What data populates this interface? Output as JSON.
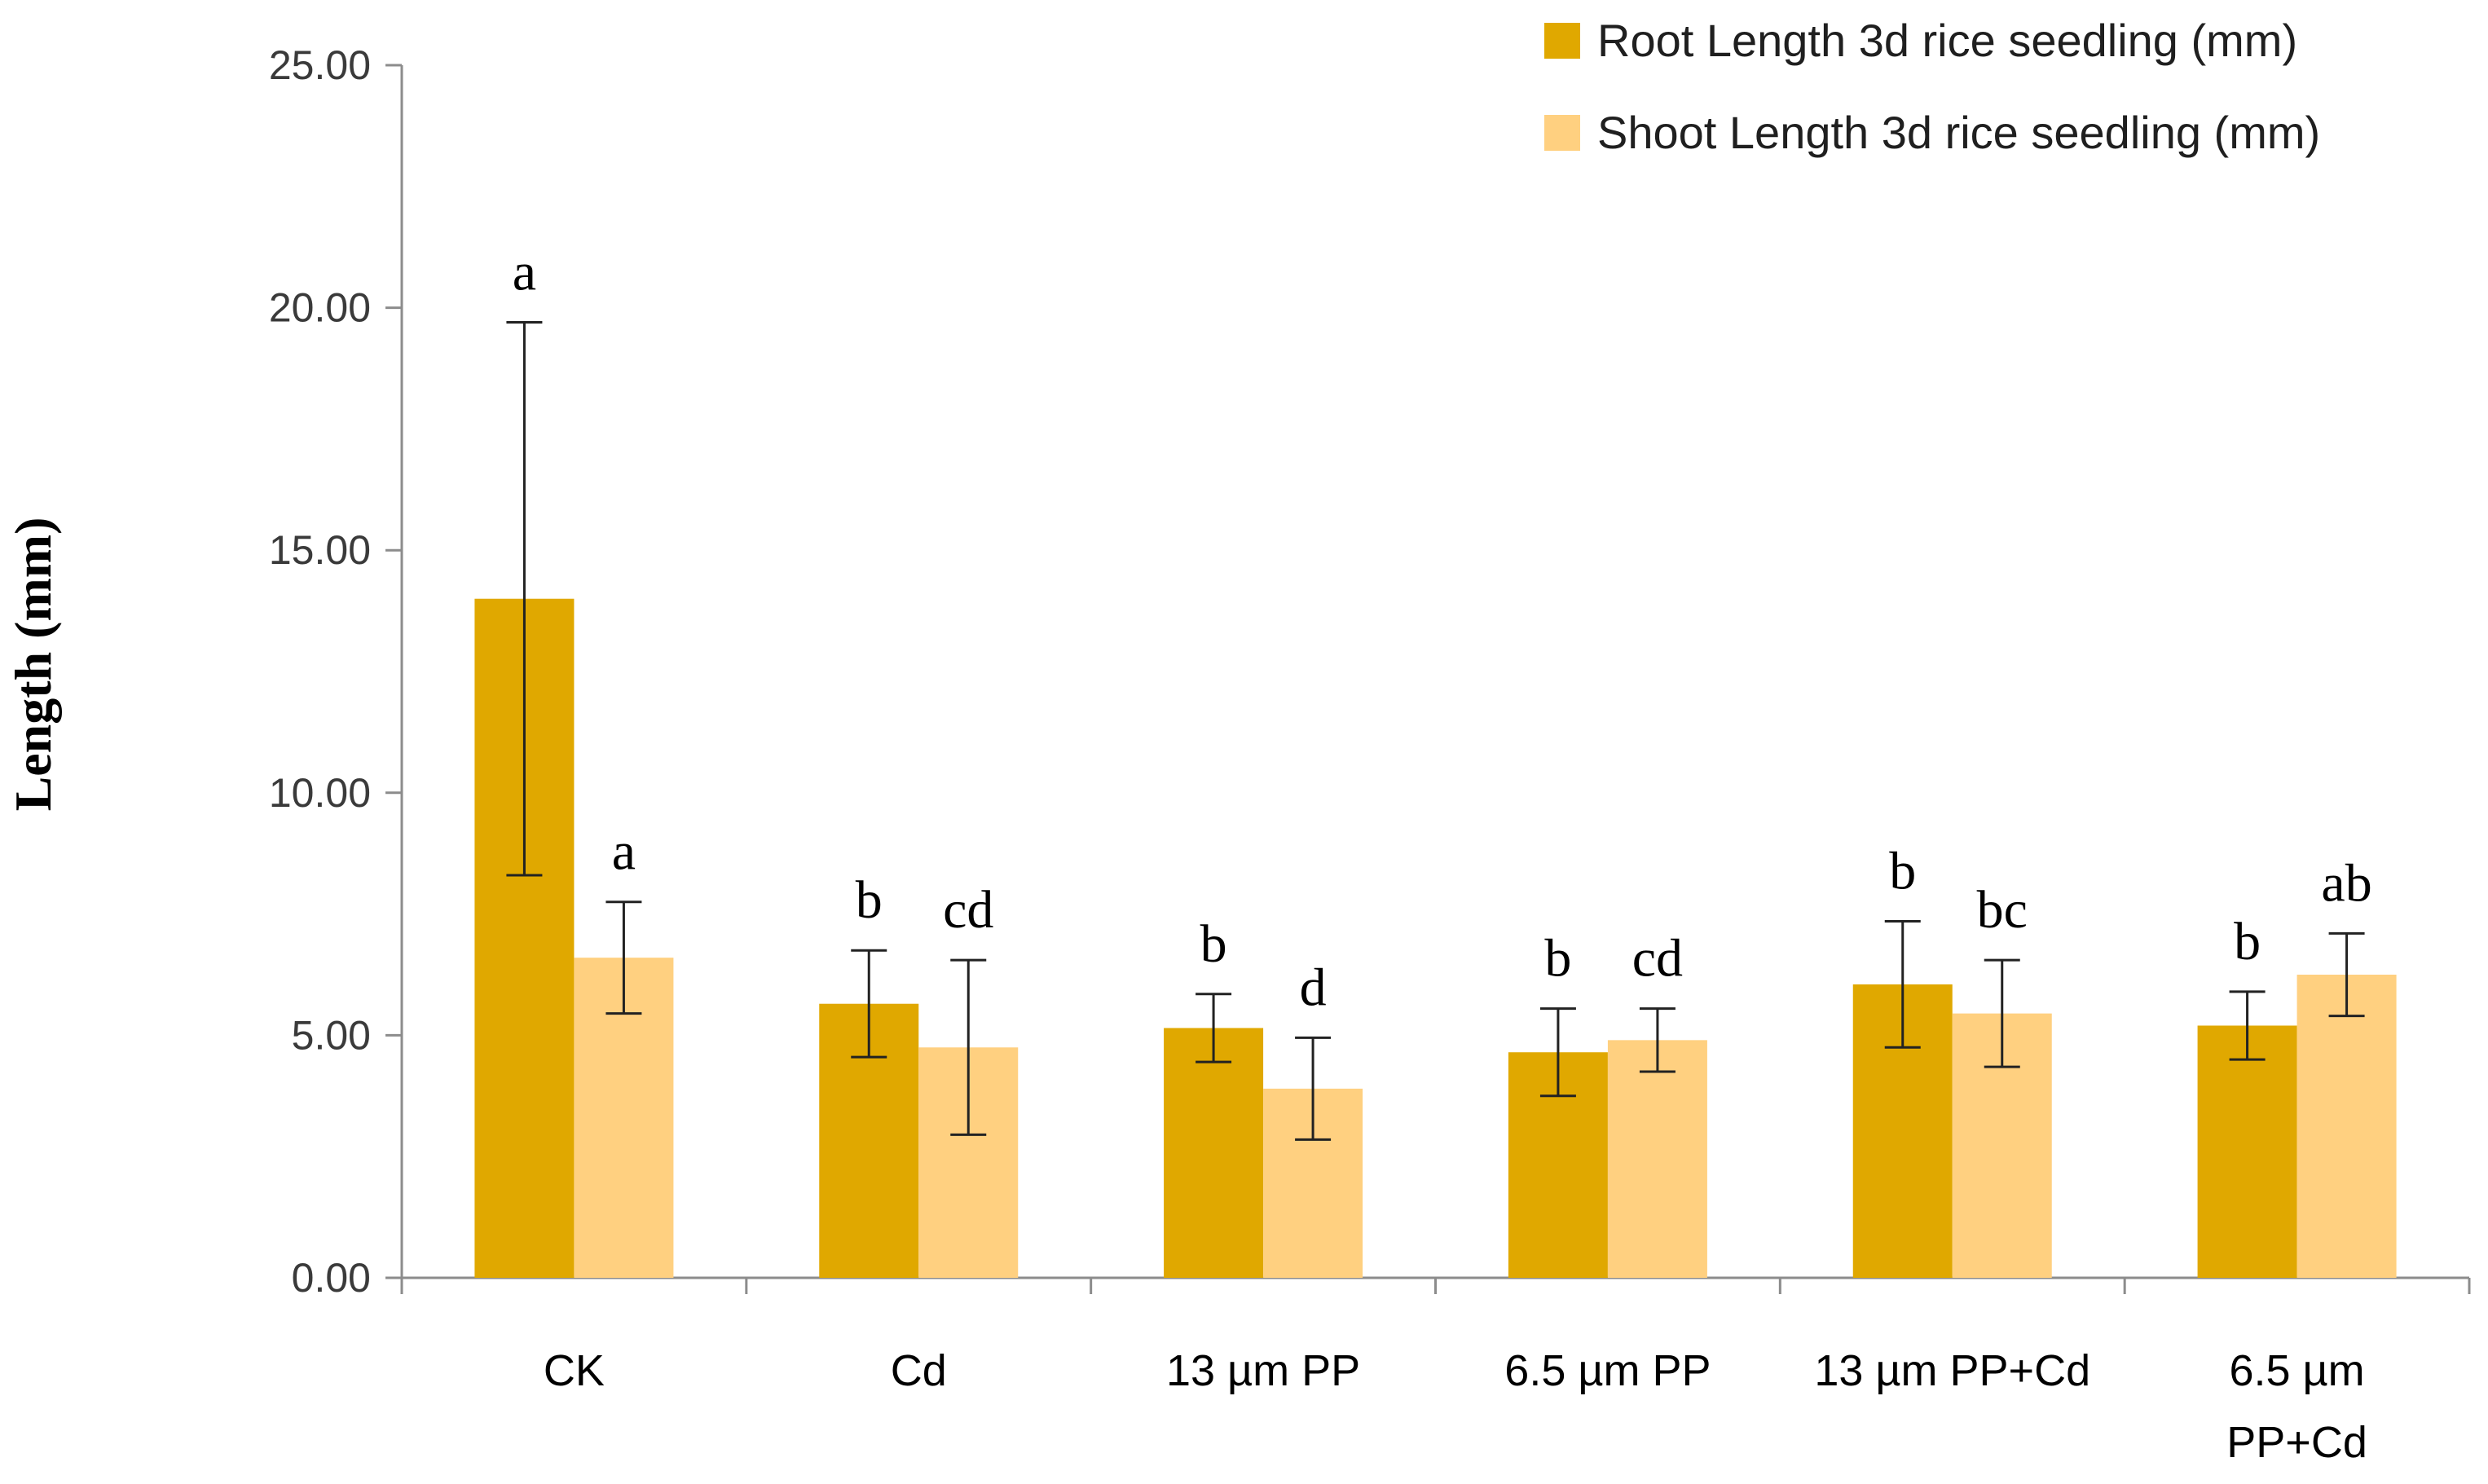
{
  "colors": {
    "root": "#e0a800",
    "shoot": "#ffd080",
    "axis": "#8c8c8c",
    "error": "#222222"
  },
  "chart_data": {
    "type": "bar",
    "title": "",
    "xlabel": "",
    "ylabel": "Length (mm)",
    "ylim": [
      0,
      25
    ],
    "yticks": [
      0,
      5,
      10,
      15,
      20,
      25
    ],
    "ytick_labels": [
      "0.00",
      "5.00",
      "10.00",
      "15.00",
      "20.00",
      "25.00"
    ],
    "legend_position": "top-right",
    "categories": [
      [
        "CK"
      ],
      [
        "Cd"
      ],
      [
        "13 µm PP"
      ],
      [
        "6.5 µm PP"
      ],
      [
        "13 µm PP+Cd"
      ],
      [
        "6.5 µm",
        "PP+Cd"
      ]
    ],
    "series": [
      {
        "name": "Root Length 3d rice seedling (mm)",
        "color_key": "root",
        "values": [
          14.0,
          5.65,
          5.15,
          4.65,
          6.05,
          5.2
        ],
        "errors": [
          5.7,
          1.1,
          0.7,
          0.9,
          1.3,
          0.7
        ],
        "letters": [
          "a",
          "b",
          "b",
          "b",
          "b",
          "b"
        ]
      },
      {
        "name": "Shoot Length 3d rice seedling (mm)",
        "color_key": "shoot",
        "values": [
          6.6,
          4.75,
          3.9,
          4.9,
          5.45,
          6.25
        ],
        "errors": [
          1.15,
          1.8,
          1.05,
          0.65,
          1.1,
          0.85
        ],
        "letters": [
          "a",
          "cd",
          "d",
          "cd",
          "bc",
          "ab"
        ]
      }
    ]
  }
}
